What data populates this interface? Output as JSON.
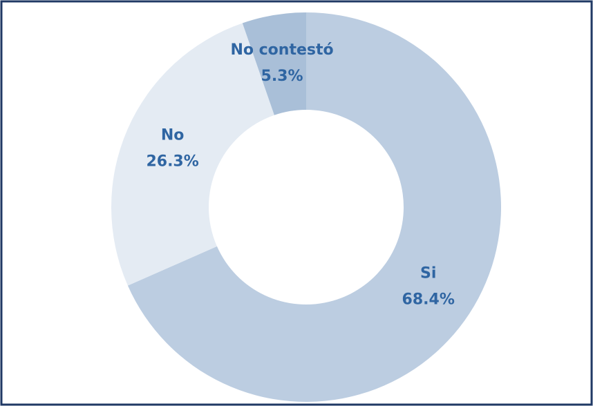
{
  "chart_data": {
    "type": "donut",
    "categories": [
      "Si",
      "No",
      "No contestó"
    ],
    "values": [
      68.4,
      26.3,
      5.3
    ],
    "value_labels": [
      "68.4%",
      "26.3%",
      "5.3%"
    ],
    "colors": [
      "#bccde1",
      "#e4ebf3",
      "#a9bfd8"
    ]
  }
}
